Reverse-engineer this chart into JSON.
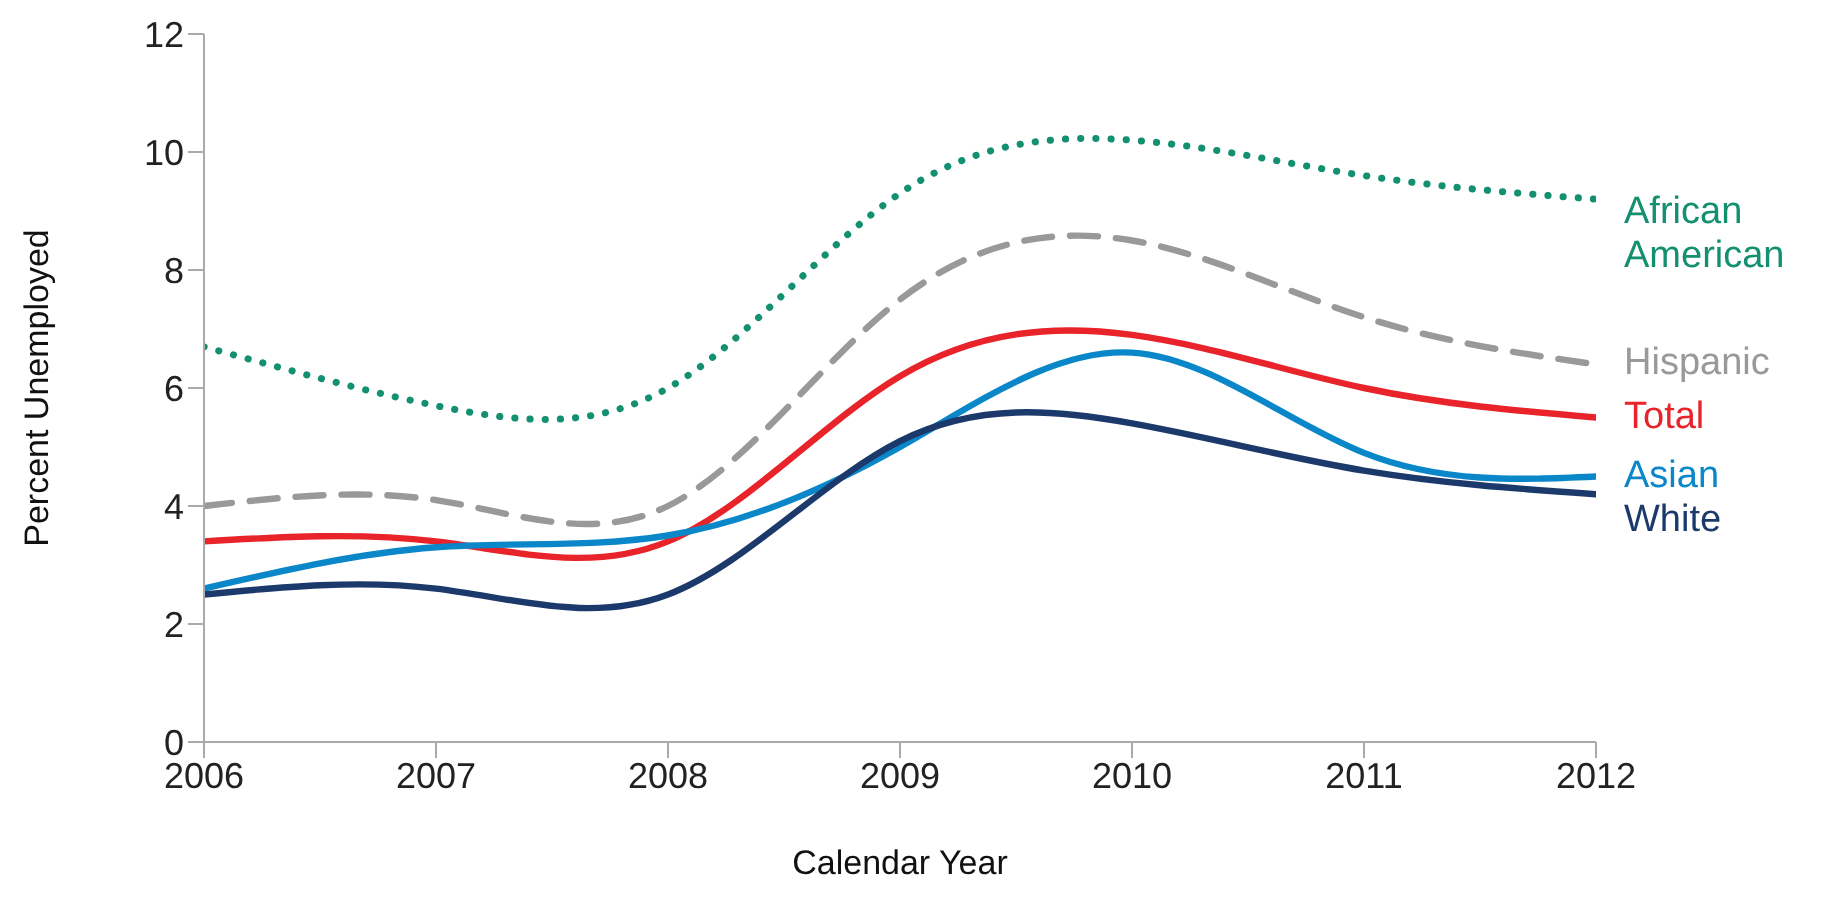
{
  "chart_data": {
    "type": "line",
    "xlabel": "Calendar Year",
    "ylabel": "Percent Unemployed",
    "x": [
      2006,
      2007,
      2008,
      2009,
      2010,
      2011,
      2012
    ],
    "xlim": [
      2006,
      2012
    ],
    "xticks": [
      2006,
      2007,
      2008,
      2009,
      2010,
      2011,
      2012
    ],
    "ylim": [
      0,
      12
    ],
    "yticks": [
      0,
      2,
      4,
      6,
      8,
      10,
      12
    ],
    "grid": false,
    "legend": false,
    "marker": "none",
    "series": [
      {
        "name": "African American",
        "color": "#13906f",
        "line_style": "dotted",
        "values": [
          6.7,
          5.7,
          6.0,
          9.3,
          10.2,
          9.6,
          9.2
        ]
      },
      {
        "name": "Hispanic",
        "color": "#999999",
        "line_style": "dashed",
        "values": [
          4.0,
          4.1,
          4.0,
          7.5,
          8.5,
          7.2,
          6.4
        ]
      },
      {
        "name": "Total",
        "color": "#e8232a",
        "line_style": "solid",
        "values": [
          3.4,
          3.4,
          3.4,
          6.2,
          6.9,
          6.0,
          5.5
        ]
      },
      {
        "name": "Asian",
        "color": "#0a87c8",
        "line_style": "solid",
        "values": [
          2.6,
          3.3,
          3.5,
          5.0,
          6.6,
          4.9,
          4.5
        ]
      },
      {
        "name": "White",
        "color": "#1b3a6b",
        "line_style": "solid",
        "values": [
          2.5,
          2.6,
          2.5,
          5.1,
          5.4,
          4.6,
          4.2
        ]
      }
    ]
  }
}
